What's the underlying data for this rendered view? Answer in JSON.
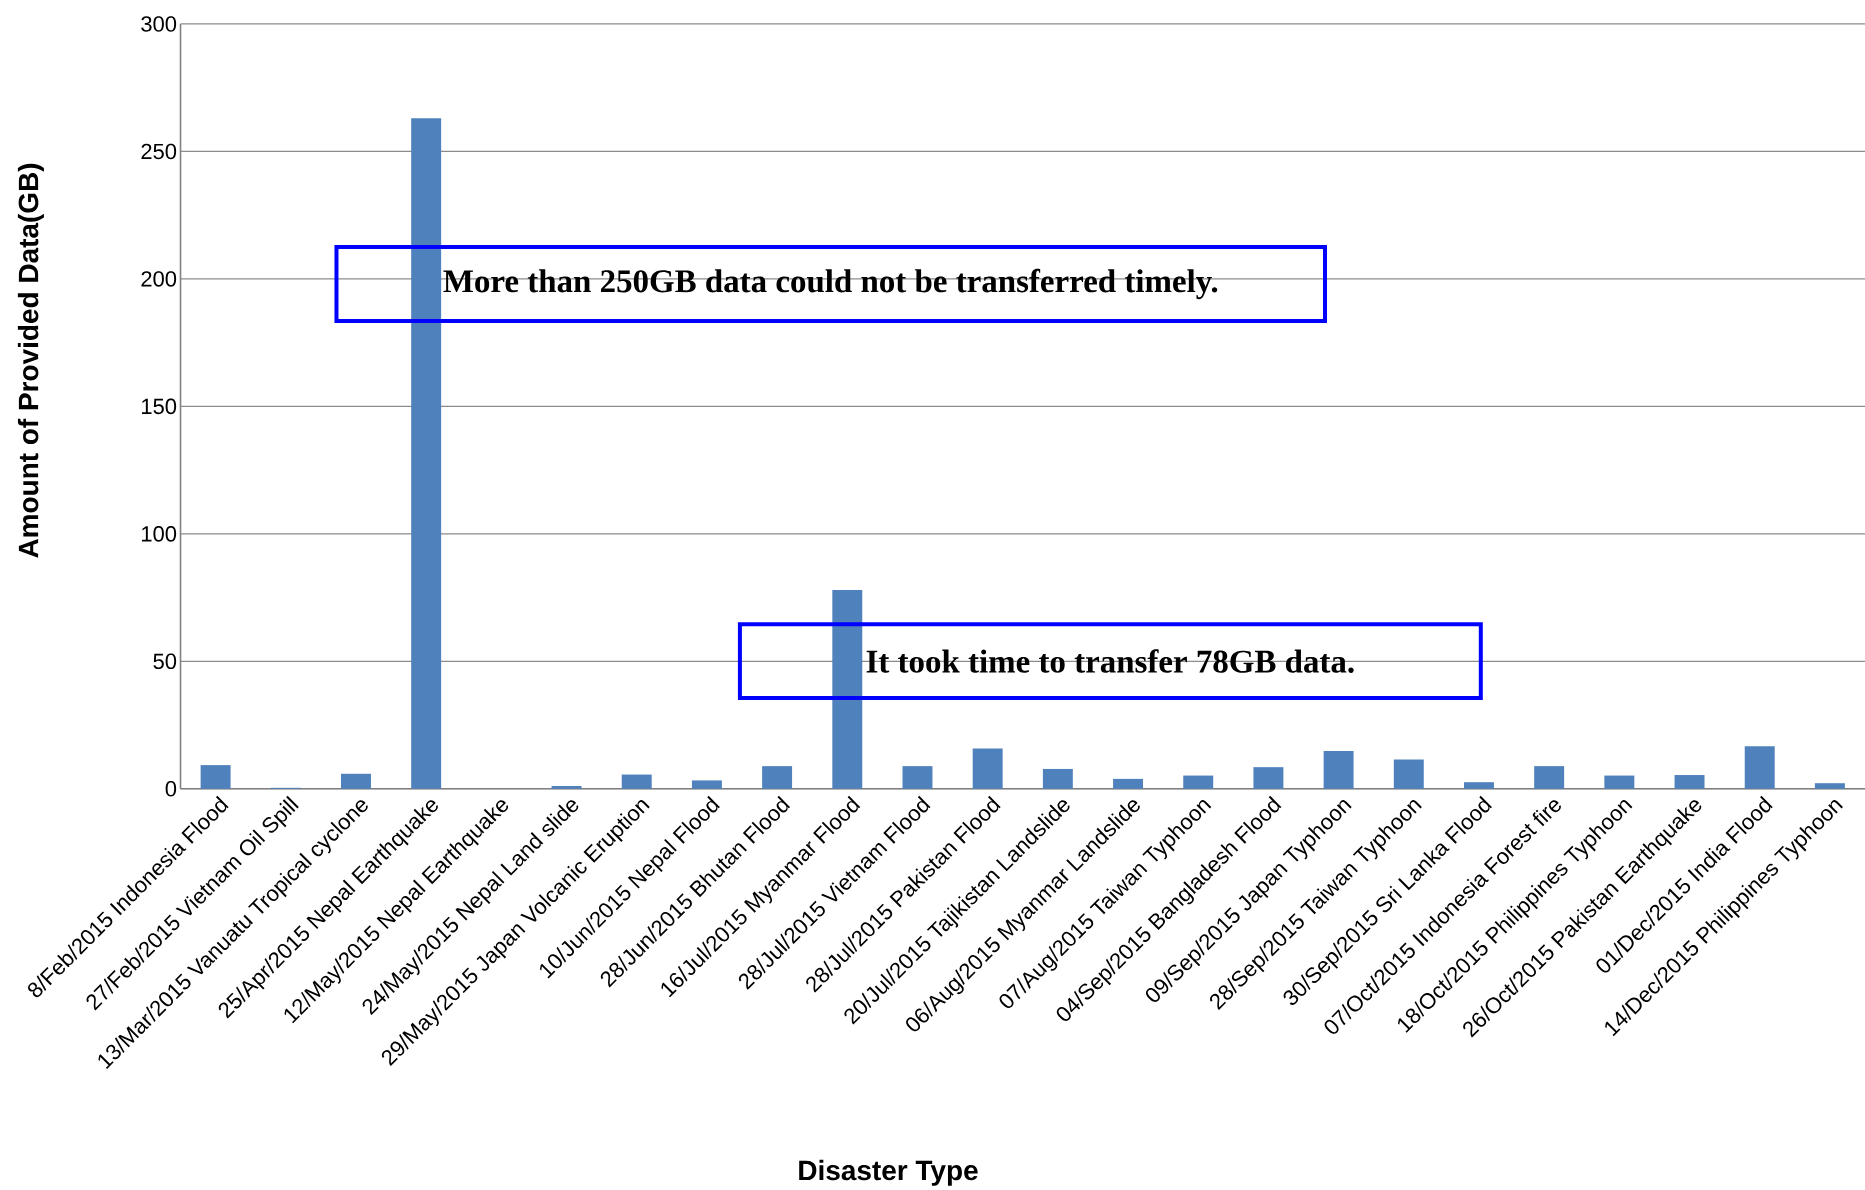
{
  "chart_data": {
    "type": "bar",
    "xlabel": "Disaster Type",
    "ylabel": "Amount of Provided Data(GB)",
    "categories": [
      "8/Feb/2015 Indonesia Flood",
      "27/Feb/2015 Vietnam  Oil Spill",
      "13/Mar/2015 Vanuatu  Tropical cyclone",
      "25/Apr/2015 Nepal  Earthquake",
      "12/May/2015 Nepal  Earthquake",
      "24/May/2015 Nepal  Land slide",
      "29/May/2015 Japan  Volcanic Eruption",
      "10/Jun/2015 Nepal  Flood",
      "28/Jun/2015 Bhutan  Flood",
      "16/Jul/2015 Myanmar  Flood",
      "28/Jul/2015 Vietnam  Flood",
      "28/Jul/2015 Pakistan Flood",
      "20/Jul/2015 Tajikistan Landslide",
      "06/Aug/2015 Myanmar Landslide",
      "07/Aug/2015 Taiwan Typhoon",
      "04/Sep/2015 Bangladesh Flood",
      "09/Sep/2015 Japan Typhoon",
      "28/Sep/2015 Taiwan Typhoon",
      "30/Sep/2015 Sri Lanka Flood",
      "07/Oct/2015 Indonesia Forest fire",
      "18/Oct/2015 Philippines Typhoon",
      "26/Oct/2015 Pakistan Earthquake",
      "01/Dec/2015 India Flood",
      "14/Dec/2015 Philippines Typhoon"
    ],
    "values": [
      9.3,
      0.4,
      5.9,
      263,
      0,
      1.1,
      5.6,
      3.3,
      8.9,
      78,
      8.9,
      15.8,
      7.8,
      3.9,
      5.2,
      8.5,
      14.8,
      11.5,
      2.6,
      8.9,
      5.2,
      5.4,
      16.7,
      2.2
    ],
    "color": "#4f81bd",
    "ylim": [
      0,
      300
    ],
    "yticks": [
      0,
      50,
      100,
      150,
      200,
      250,
      300
    ],
    "grid": "y",
    "annotations": [
      "More than 250GB data could not be transferred timely.",
      "It took time to transfer 78GB data."
    ]
  }
}
